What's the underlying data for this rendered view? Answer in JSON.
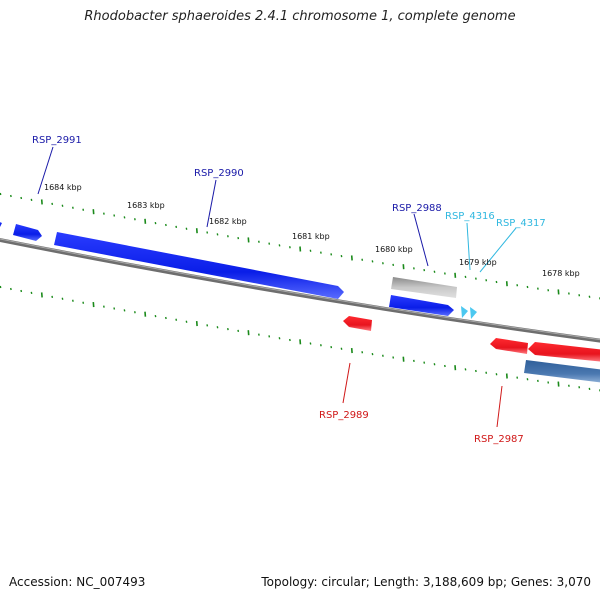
{
  "title": "Rhodobacter sphaeroides 2.4.1 chromosome 1, complete genome",
  "footer": {
    "accession": "Accession: NC_007493",
    "summary": "Topology: circular; Length: 3,188,609 bp; Genes: 3,070"
  },
  "colors": {
    "forward_gene": "#0a1ee8",
    "reverse_gene": "#e8141e",
    "pseudo_gene": "#b4b4b4",
    "small_gene": "#4cc8f0",
    "reverse_track_2": "#4a78b0",
    "backbone": "#7a7a7a",
    "tick": "#1a8a1a",
    "label_blue": "#1a1aa8",
    "label_red": "#d01818",
    "label_cyan": "#30b8e0"
  },
  "scale_labels": [
    "1684 kbp",
    "1683 kbp",
    "1682 kbp",
    "1681 kbp",
    "1680 kbp",
    "1679 kbp",
    "1678 kbp"
  ],
  "gene_labels": {
    "rsp_2991": "RSP_2991",
    "rsp_2990": "RSP_2990",
    "rsp_2988": "RSP_2988",
    "rsp_4316": "RSP_4316",
    "rsp_4317": "RSP_4317",
    "rsp_2989": "RSP_2989",
    "rsp_2987": "RSP_2987"
  }
}
